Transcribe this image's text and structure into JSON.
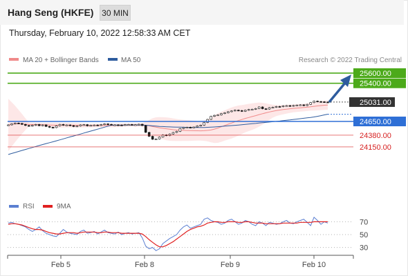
{
  "header": {
    "title": "Hang Seng (HKFE)",
    "timeframe": "30 MIN",
    "datetime": "Thursday, February 10, 2022 12:58:33 AM CET"
  },
  "legend": {
    "bollinger": "MA 20 + Bollinger Bands",
    "ma50": "MA 50",
    "credit": "Research © 2022 Trading Central",
    "rsi": "RSI",
    "rsi_ma": "9MA"
  },
  "colors": {
    "bollinger": "#f08a8a",
    "bollinger_band": "#fde3e3",
    "ma50": "#2e5c9e",
    "resistance": "#4caa1a",
    "support": "#2e6fd6",
    "support_minor": "#d62020",
    "current_price": "#333333",
    "candle": "#1a1a1a",
    "rsi": "#5b7fd1",
    "rsi_ma": "#e02020",
    "arrow": "#2e5c9e"
  },
  "chart_data": {
    "type": "candlestick",
    "title": "Hang Seng (HKFE)",
    "timeframe": "30 MIN",
    "x_ticks": [
      "Feb 5",
      "Feb 8",
      "Feb 9",
      "Feb 10"
    ],
    "price_levels": [
      {
        "value": 25600,
        "label": "25600.00",
        "kind": "resistance"
      },
      {
        "value": 25400,
        "label": "25400.00",
        "kind": "resistance"
      },
      {
        "value": 25031,
        "label": "25031.00",
        "kind": "current"
      },
      {
        "value": 24650,
        "label": "24650.00",
        "kind": "pivot"
      },
      {
        "value": 24380,
        "label": "24380.00",
        "kind": "support"
      },
      {
        "value": 24150,
        "label": "24150.00",
        "kind": "support"
      }
    ],
    "close_series": [
      24582,
      24603,
      24618,
      24611,
      24592,
      24571,
      24558,
      24575,
      24590,
      24567,
      24582,
      24552,
      24535,
      24529,
      24565,
      24591,
      24575,
      24581,
      24569,
      24550,
      24561,
      24583,
      24587,
      24563,
      24574,
      24580,
      24571,
      24589,
      24602,
      24593,
      24580,
      24583,
      24580,
      24574,
      24589,
      24590,
      24582,
      24586,
      24595,
      24570,
      24435,
      24358,
      24299,
      24305,
      24343,
      24385,
      24372,
      24403,
      24433,
      24454,
      24510,
      24530,
      24535,
      24531,
      24540,
      24562,
      24576,
      24630,
      24690,
      24750,
      24770,
      24778,
      24804,
      24820,
      24842,
      24857,
      24872,
      24864,
      24850,
      24870,
      24885,
      24890,
      24904,
      24935,
      24900,
      24893,
      24922,
      24930,
      24944,
      24940,
      24956,
      24962,
      24950,
      24965,
      24972,
      24977,
      24961,
      24986,
      25020,
      25050,
      25041,
      25037,
      25032,
      25031
    ],
    "ma50_start": 24000,
    "ma50_end": 24870,
    "rsi": {
      "levels": [
        70,
        50,
        30
      ],
      "values": [
        68,
        69,
        67,
        66,
        64,
        62,
        58,
        55,
        58,
        62,
        56,
        52,
        50,
        48,
        47,
        52,
        58,
        54,
        52,
        51,
        50,
        55,
        57,
        52,
        53,
        55,
        51,
        54,
        57,
        53,
        52,
        51,
        54,
        50,
        52,
        53,
        51,
        52,
        53,
        45,
        32,
        28,
        30,
        25,
        28,
        36,
        40,
        44,
        47,
        50,
        57,
        62,
        65,
        60,
        62,
        64,
        66,
        74,
        76,
        72,
        70,
        69,
        66,
        68,
        72,
        74,
        70,
        66,
        68,
        72,
        70,
        66,
        64,
        70,
        68,
        64,
        69,
        68,
        66,
        67,
        70,
        72,
        68,
        67,
        70,
        72,
        74,
        69,
        64,
        77,
        72,
        66,
        70,
        68
      ],
      "ma_values": [
        66,
        67,
        67,
        66,
        65,
        63,
        61,
        59,
        58,
        58,
        57,
        55,
        53,
        52,
        51,
        51,
        52,
        53,
        53,
        53,
        52,
        53,
        54,
        54,
        54,
        54,
        53,
        53,
        54,
        54,
        53,
        53,
        53,
        52,
        52,
        52,
        52,
        52,
        52,
        51,
        47,
        42,
        38,
        34,
        31,
        31,
        33,
        36,
        39,
        43,
        47,
        51,
        55,
        58,
        60,
        62,
        63,
        65,
        68,
        69,
        70,
        70,
        69,
        69,
        70,
        70,
        70,
        69,
        69,
        70,
        70,
        69,
        68,
        68,
        68,
        67,
        67,
        67,
        67,
        67,
        68,
        68,
        68,
        68,
        68,
        69,
        69,
        69,
        69,
        70,
        70,
        70,
        70,
        70
      ]
    }
  }
}
